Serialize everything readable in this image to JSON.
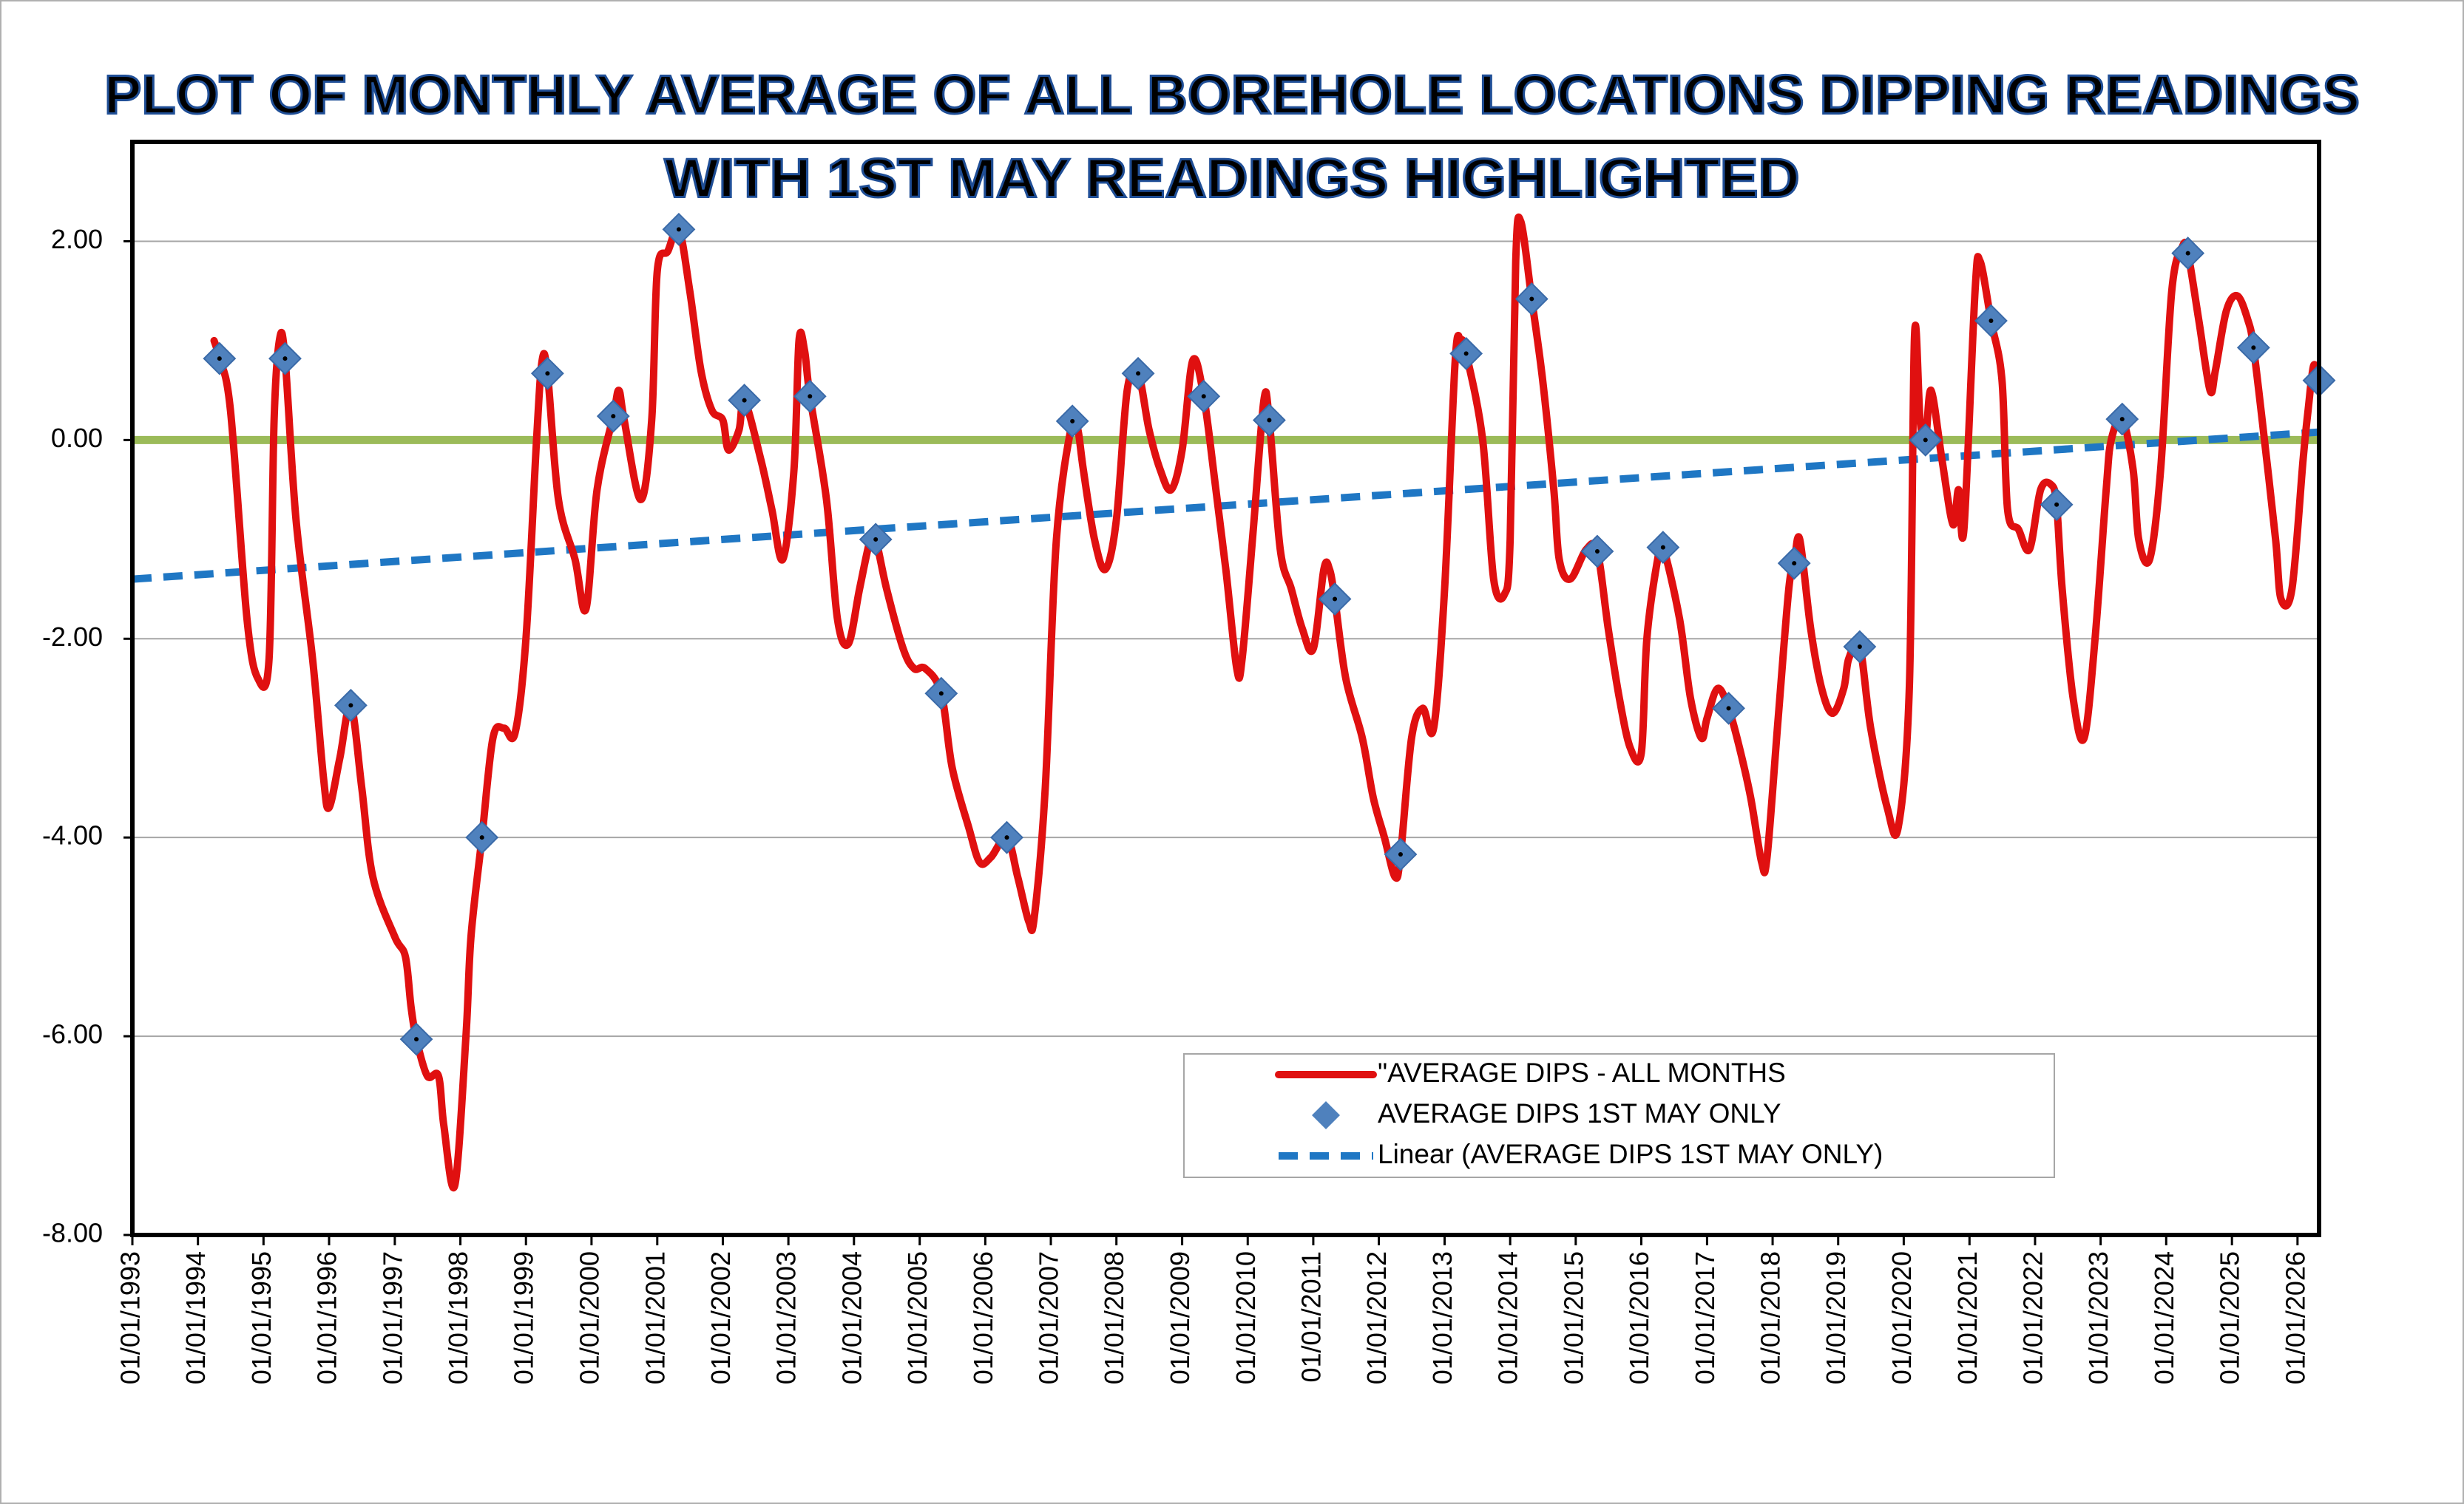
{
  "chart_data": {
    "type": "line",
    "title": [
      "PLOT OF MONTHLY AVERAGE OF ALL BOREHOLE LOCATIONS DIPPING READINGS",
      "WITH 1ST MAY READINGS HIGHLIGHTED"
    ],
    "xlim": [
      "01/01/1993",
      "01/05/2026"
    ],
    "xticks": [
      "01/01/1993",
      "01/01/1994",
      "01/01/1995",
      "01/01/1996",
      "01/01/1997",
      "01/01/1998",
      "01/01/1999",
      "01/01/2000",
      "01/01/2001",
      "01/01/2002",
      "01/01/2003",
      "01/01/2004",
      "01/01/2005",
      "01/01/2006",
      "01/01/2007",
      "01/01/2008",
      "01/01/2009",
      "01/01/2010",
      "01/01/2011",
      "01/01/2012",
      "01/01/2013",
      "01/01/2014",
      "01/01/2015",
      "01/01/2016",
      "01/01/2017",
      "01/01/2018",
      "01/01/2019",
      "01/01/2020",
      "01/01/2021",
      "01/01/2022",
      "01/01/2023",
      "01/01/2024",
      "01/01/2025",
      "01/01/2026"
    ],
    "ylim": [
      -8,
      3
    ],
    "yticks": [
      {
        "value": -8,
        "label": "-8.00"
      },
      {
        "value": -6,
        "label": "-6.00"
      },
      {
        "value": -4,
        "label": "-4.00"
      },
      {
        "value": -2,
        "label": "-2.00"
      },
      {
        "value": 0,
        "label": "0.00"
      },
      {
        "value": 2,
        "label": "2.00"
      }
    ],
    "grid": true,
    "legend": "lower right",
    "reference_line": {
      "value": 0,
      "color": "#9bbb59"
    },
    "series": [
      {
        "name": "\"AVERAGE DIPS - ALL MONTHS",
        "kind": "line",
        "smooth": true,
        "color": "#e01010",
        "x": [
          "01/04/1994",
          "01/05/1994",
          "01/07/1994",
          "01/10/1994",
          "01/12/1994",
          "01/02/1995",
          "01/03/1995",
          "01/04/1995",
          "01/05/1995",
          "01/07/1995",
          "01/10/1995",
          "01/12/1995",
          "01/01/1996",
          "01/03/1996",
          "01/05/1996",
          "01/07/1996",
          "01/09/1996",
          "01/01/1997",
          "01/03/1997",
          "01/04/1997",
          "01/05/1997",
          "01/07/1997",
          "01/09/1997",
          "01/10/1997",
          "01/12/1997",
          "01/02/1998",
          "01/03/1998",
          "01/05/1998",
          "01/07/1998",
          "01/09/1998",
          "01/11/1998",
          "01/01/1999",
          "01/03/1999",
          "01/04/1999",
          "01/05/1999",
          "01/07/1999",
          "01/10/1999",
          "01/12/1999",
          "01/02/2000",
          "01/05/2000",
          "01/06/2000",
          "01/07/2000",
          "01/10/2000",
          "01/12/2000",
          "01/01/2001",
          "01/03/2001",
          "01/05/2001",
          "01/07/2001",
          "01/09/2001",
          "01/11/2001",
          "01/01/2002",
          "01/02/2002",
          "01/04/2002",
          "01/05/2002",
          "01/08/2002",
          "01/10/2002",
          "01/12/2002",
          "01/02/2003",
          "01/03/2003",
          "01/04/2003",
          "01/05/2003",
          "01/08/2003",
          "01/10/2003",
          "01/12/2003",
          "01/02/2004",
          "01/04/2004",
          "01/05/2004",
          "01/07/2004",
          "01/10/2004",
          "01/12/2004",
          "01/02/2005",
          "01/05/2005",
          "01/07/2005",
          "01/10/2005",
          "01/12/2005",
          "01/02/2006",
          "01/05/2006",
          "01/07/2006",
          "01/09/2006",
          "01/10/2006",
          "01/12/2006",
          "01/02/2007",
          "01/05/2007",
          "01/06/2007",
          "01/07/2007",
          "01/09/2007",
          "01/11/2007",
          "01/01/2008",
          "01/03/2008",
          "01/05/2008",
          "01/07/2008",
          "01/09/2008",
          "01/11/2008",
          "01/01/2009",
          "01/03/2009",
          "01/05/2009",
          "01/07/2009",
          "01/09/2009",
          "01/11/2009",
          "01/12/2009",
          "01/02/2010",
          "01/04/2010",
          "01/05/2010",
          "01/07/2010",
          "01/09/2010",
          "01/11/2010",
          "01/01/2011",
          "01/03/2011",
          "01/04/2011",
          "01/05/2011",
          "01/07/2011",
          "01/10/2011",
          "01/12/2011",
          "01/02/2012",
          "01/04/2012",
          "01/05/2012",
          "01/07/2012",
          "01/09/2012",
          "01/11/2012",
          "01/01/2013",
          "01/03/2013",
          "01/04/2013",
          "01/05/2013",
          "01/08/2013",
          "01/10/2013",
          "01/12/2013",
          "01/01/2014",
          "01/02/2014",
          "01/03/2014",
          "01/05/2014",
          "01/07/2014",
          "01/09/2014",
          "01/10/2014",
          "01/12/2014",
          "01/03/2015",
          "01/05/2015",
          "01/07/2015",
          "01/09/2015",
          "01/11/2015",
          "01/01/2016",
          "01/02/2016",
          "01/04/2016",
          "01/05/2016",
          "01/08/2016",
          "01/10/2016",
          "01/12/2016",
          "01/01/2017",
          "01/03/2017",
          "01/05/2017",
          "01/07/2017",
          "01/09/2017",
          "01/11/2017",
          "01/12/2017",
          "01/02/2018",
          "01/04/2018",
          "01/05/2018",
          "01/06/2018",
          "01/08/2018",
          "01/10/2018",
          "01/12/2018",
          "01/02/2019",
          "01/03/2019",
          "01/05/2019",
          "01/07/2019",
          "01/10/2019",
          "01/12/2019",
          "01/02/2020",
          "01/03/2020",
          "01/04/2020",
          "01/05/2020",
          "01/06/2020",
          "01/08/2020",
          "01/10/2020",
          "01/11/2020",
          "01/12/2020",
          "01/02/2021",
          "01/03/2021",
          "01/05/2021",
          "01/07/2021",
          "01/08/2021",
          "01/10/2021",
          "01/12/2021",
          "01/02/2022",
          "01/04/2022",
          "01/05/2022",
          "01/06/2022",
          "01/08/2022",
          "01/10/2022",
          "01/12/2022",
          "01/02/2023",
          "01/03/2023",
          "01/05/2023",
          "01/07/2023",
          "01/08/2023",
          "01/10/2023",
          "01/12/2023",
          "01/02/2024",
          "01/04/2024",
          "01/05/2024",
          "01/07/2024",
          "01/09/2024",
          "01/10/2024",
          "01/12/2024",
          "01/02/2025",
          "01/04/2025",
          "01/05/2025",
          "01/07/2025",
          "01/09/2025",
          "01/10/2025",
          "01/12/2025",
          "01/02/2026",
          "01/03/2026",
          "01/04/2026",
          "01/05/2026"
        ],
        "values": [
          1.0,
          0.82,
          0.3,
          -1.8,
          -2.4,
          -2.2,
          0.2,
          1.02,
          0.82,
          -0.8,
          -2.2,
          -3.4,
          -3.7,
          -3.2,
          -2.67,
          -3.5,
          -4.4,
          -5.0,
          -5.2,
          -5.7,
          -6.03,
          -6.4,
          -6.4,
          -6.9,
          -7.5,
          -6.0,
          -5.0,
          -4.0,
          -3.0,
          -2.9,
          -2.95,
          -2.0,
          0.0,
          0.8,
          0.67,
          -0.6,
          -1.2,
          -1.7,
          -0.5,
          0.24,
          0.5,
          0.2,
          -0.6,
          0.2,
          1.7,
          1.9,
          2.12,
          1.5,
          0.7,
          0.3,
          0.2,
          -0.1,
          0.1,
          0.4,
          -0.2,
          -0.7,
          -1.2,
          -0.3,
          1.0,
          0.9,
          0.44,
          -0.6,
          -1.8,
          -2.05,
          -1.5,
          -1.0,
          -1.0,
          -1.5,
          -2.1,
          -2.3,
          -2.3,
          -2.55,
          -3.3,
          -3.9,
          -4.25,
          -4.2,
          -4.0,
          -4.4,
          -4.85,
          -4.8,
          -3.5,
          -1.0,
          0.19,
          0.1,
          -0.3,
          -1.0,
          -1.3,
          -0.8,
          0.5,
          0.67,
          0.1,
          -0.3,
          -0.5,
          -0.1,
          0.8,
          0.44,
          -0.4,
          -1.3,
          -2.3,
          -2.2,
          -0.9,
          0.4,
          0.2,
          -1.1,
          -1.5,
          -1.9,
          -2.1,
          -1.3,
          -1.3,
          -1.6,
          -2.4,
          -3.0,
          -3.6,
          -4.0,
          -4.4,
          -4.17,
          -3.0,
          -2.7,
          -2.9,
          -1.5,
          0.8,
          1.0,
          0.87,
          0.0,
          -1.4,
          -1.55,
          -1.0,
          1.8,
          2.2,
          1.42,
          0.6,
          -0.5,
          -1.2,
          -1.4,
          -1.1,
          -1.12,
          -1.9,
          -2.6,
          -3.1,
          -3.15,
          -2.0,
          -1.2,
          -1.08,
          -1.8,
          -2.6,
          -3.0,
          -2.8,
          -2.5,
          -2.7,
          -3.1,
          -3.6,
          -4.25,
          -4.2,
          -2.8,
          -1.5,
          -1.24,
          -1.0,
          -1.9,
          -2.5,
          -2.75,
          -2.5,
          -2.2,
          -2.08,
          -2.9,
          -3.7,
          -3.9,
          -2.5,
          1.05,
          0.2,
          0.0,
          0.5,
          -0.2,
          -0.85,
          -0.5,
          -0.9,
          1.5,
          1.8,
          1.2,
          0.6,
          -0.7,
          -0.9,
          -1.1,
          -0.5,
          -0.45,
          -0.65,
          -1.5,
          -2.6,
          -3.0,
          -2.0,
          -0.5,
          0.0,
          0.21,
          -0.3,
          -1.0,
          -1.2,
          -0.3,
          1.5,
          1.95,
          1.88,
          1.2,
          0.5,
          0.7,
          1.3,
          1.45,
          1.2,
          0.93,
          0.0,
          -1.0,
          -1.6,
          -1.5,
          -0.2,
          0.3,
          0.75,
          0.6
        ]
      },
      {
        "name": "AVERAGE DIPS 1ST MAY ONLY",
        "kind": "marker",
        "color": "#4f81bd",
        "x": [
          "01/05/1994",
          "01/05/1995",
          "01/05/1996",
          "01/05/1997",
          "01/05/1998",
          "01/05/1999",
          "01/05/2000",
          "01/05/2001",
          "01/05/2002",
          "01/05/2003",
          "01/05/2004",
          "01/05/2005",
          "01/05/2006",
          "01/05/2007",
          "01/05/2008",
          "01/05/2009",
          "01/05/2010",
          "01/05/2011",
          "01/05/2012",
          "01/05/2013",
          "01/05/2014",
          "01/05/2015",
          "01/05/2016",
          "01/05/2017",
          "01/05/2018",
          "01/05/2019",
          "01/05/2020",
          "01/05/2021",
          "01/05/2022",
          "01/05/2023",
          "01/05/2024",
          "01/05/2025",
          "01/05/2026"
        ],
        "values": [
          0.82,
          0.82,
          -2.67,
          -6.03,
          -4.0,
          0.67,
          0.24,
          2.12,
          0.4,
          0.44,
          -1.0,
          -2.55,
          -4.0,
          0.19,
          0.67,
          0.44,
          0.2,
          -1.6,
          -4.17,
          0.87,
          1.42,
          -1.12,
          -1.08,
          -2.7,
          -1.24,
          -2.08,
          0.0,
          1.2,
          -0.65,
          0.21,
          1.88,
          0.93,
          0.6
        ]
      },
      {
        "name": "Linear (AVERAGE DIPS 1ST MAY ONLY)",
        "kind": "line",
        "dashed": true,
        "color": "#1f77c4",
        "x": [
          "01/01/1993",
          "01/05/2026"
        ],
        "values": [
          -1.4,
          0.08
        ]
      }
    ]
  }
}
